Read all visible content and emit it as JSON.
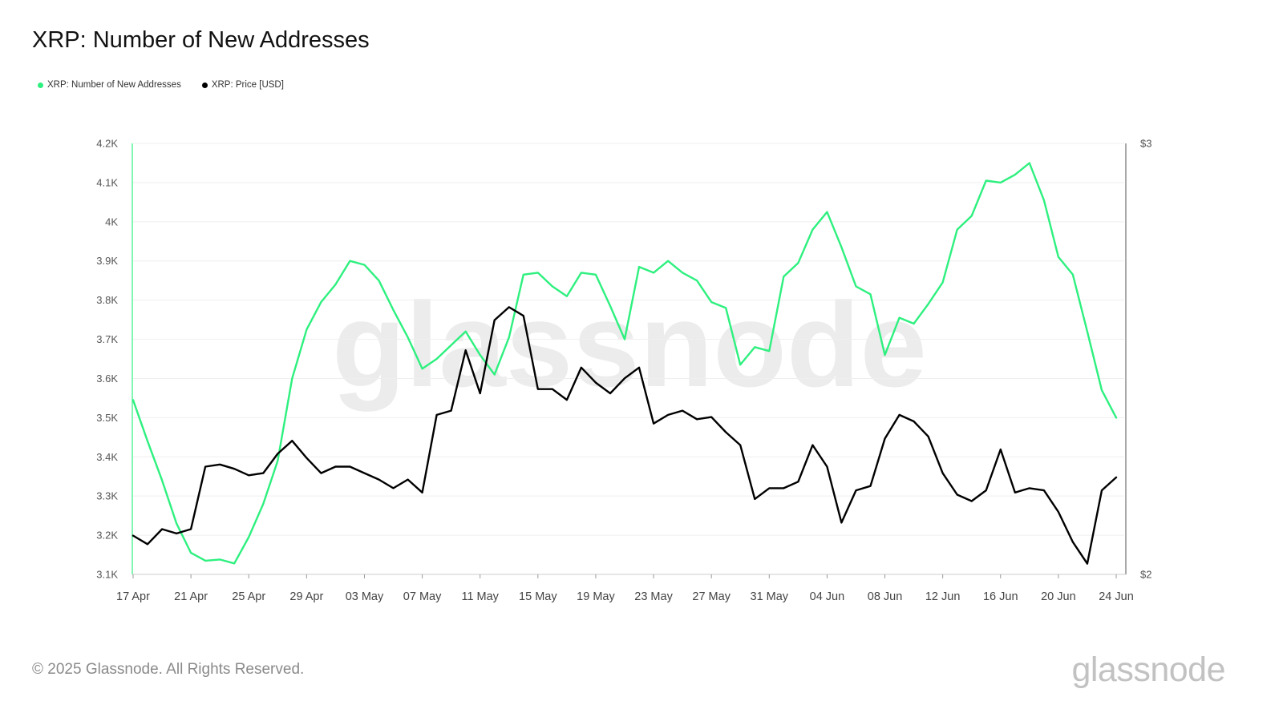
{
  "title": "XRP: Number of New Addresses",
  "legend": [
    {
      "label": "XRP: Number of New Addresses",
      "color": "#2ef07f"
    },
    {
      "label": "XRP: Price [USD]",
      "color": "#000000"
    }
  ],
  "watermark": "glassnode",
  "footer": {
    "copyright": "© 2025 Glassnode. All Rights Reserved.",
    "logo": "glassnode"
  },
  "chart_data": {
    "type": "line",
    "x": [
      "17 Apr",
      "18 Apr",
      "19 Apr",
      "20 Apr",
      "21 Apr",
      "22 Apr",
      "23 Apr",
      "24 Apr",
      "25 Apr",
      "26 Apr",
      "27 Apr",
      "28 Apr",
      "29 Apr",
      "30 Apr",
      "01 May",
      "02 May",
      "03 May",
      "04 May",
      "05 May",
      "06 May",
      "07 May",
      "08 May",
      "09 May",
      "10 May",
      "11 May",
      "12 May",
      "13 May",
      "14 May",
      "15 May",
      "16 May",
      "17 May",
      "18 May",
      "19 May",
      "20 May",
      "21 May",
      "22 May",
      "23 May",
      "24 May",
      "25 May",
      "26 May",
      "27 May",
      "28 May",
      "29 May",
      "30 May",
      "31 May",
      "01 Jun",
      "02 Jun",
      "03 Jun",
      "04 Jun",
      "05 Jun",
      "06 Jun",
      "07 Jun",
      "08 Jun",
      "09 Jun",
      "10 Jun",
      "11 Jun",
      "12 Jun",
      "13 Jun",
      "14 Jun",
      "15 Jun",
      "16 Jun",
      "17 Jun",
      "18 Jun",
      "19 Jun",
      "20 Jun",
      "21 Jun",
      "22 Jun",
      "23 Jun",
      "24 Jun"
    ],
    "xticks": [
      "17 Apr",
      "21 Apr",
      "25 Apr",
      "29 Apr",
      "03 May",
      "07 May",
      "11 May",
      "15 May",
      "19 May",
      "23 May",
      "27 May",
      "31 May",
      "04 Jun",
      "08 Jun",
      "12 Jun",
      "16 Jun",
      "20 Jun",
      "24 Jun"
    ],
    "y_left": {
      "ticks": [
        "3.1K",
        "3.2K",
        "3.3K",
        "3.4K",
        "3.5K",
        "3.6K",
        "3.7K",
        "3.8K",
        "3.9K",
        "4K",
        "4.1K",
        "4.2K"
      ],
      "ylim": [
        3100,
        4200
      ]
    },
    "y_right": {
      "ticks": [
        "$2",
        "$3"
      ],
      "ylim": [
        2,
        3
      ]
    },
    "grid": true,
    "legend_position": "top-left",
    "series": [
      {
        "name": "XRP: Number of New Addresses",
        "axis": "left",
        "color": "#2ef07f",
        "values": [
          3545,
          3440,
          3340,
          3230,
          3155,
          3135,
          3138,
          3128,
          3195,
          3280,
          3390,
          3600,
          3725,
          3795,
          3840,
          3900,
          3890,
          3850,
          3775,
          3705,
          3625,
          3650,
          3685,
          3720,
          3660,
          3610,
          3705,
          3865,
          3870,
          3835,
          3810,
          3870,
          3865,
          3785,
          3700,
          3885,
          3870,
          3900,
          3870,
          3850,
          3795,
          3780,
          3635,
          3680,
          3670,
          3860,
          3895,
          3980,
          4025,
          3935,
          3835,
          3815,
          3660,
          3755,
          3740,
          3790,
          3845,
          3980,
          4015,
          4105,
          4100,
          4120,
          4150,
          4055,
          3910,
          3865,
          3720,
          3570,
          3500
        ]
      },
      {
        "name": "XRP: Price [USD]",
        "axis": "right",
        "color": "#000000",
        "values": [
          2.09,
          2.07,
          2.105,
          2.095,
          2.105,
          2.25,
          2.255,
          2.245,
          2.23,
          2.235,
          2.28,
          2.31,
          2.27,
          2.235,
          2.25,
          2.25,
          2.235,
          2.22,
          2.2,
          2.22,
          2.19,
          2.37,
          2.38,
          2.52,
          2.42,
          2.59,
          2.62,
          2.6,
          2.43,
          2.43,
          2.405,
          2.48,
          2.445,
          2.42,
          2.455,
          2.48,
          2.35,
          2.37,
          2.38,
          2.36,
          2.365,
          2.33,
          2.3,
          2.175,
          2.2,
          2.2,
          2.215,
          2.3,
          2.25,
          2.12,
          2.195,
          2.205,
          2.315,
          2.37,
          2.355,
          2.32,
          2.235,
          2.185,
          2.17,
          2.195,
          2.29,
          2.19,
          2.2,
          2.195,
          2.145,
          2.075,
          2.025,
          2.195,
          2.225
        ]
      }
    ]
  }
}
